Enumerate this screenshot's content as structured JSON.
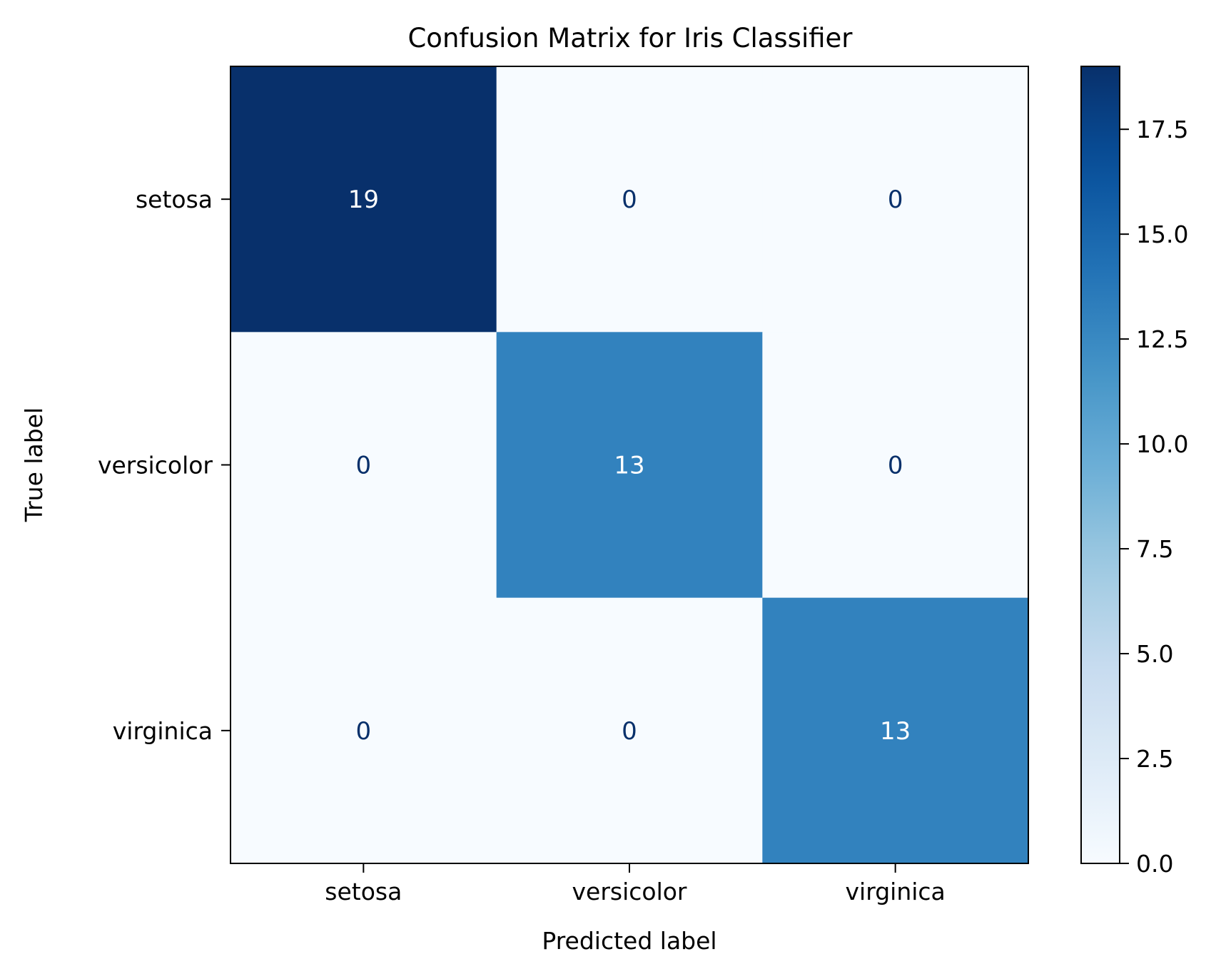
{
  "chart_data": {
    "type": "heatmap",
    "title": "Confusion Matrix for Iris Classifier",
    "xlabel": "Predicted label",
    "ylabel": "True label",
    "x_categories": [
      "setosa",
      "versicolor",
      "virginica"
    ],
    "y_categories": [
      "setosa",
      "versicolor",
      "virginica"
    ],
    "values": [
      [
        19,
        0,
        0
      ],
      [
        0,
        13,
        0
      ],
      [
        0,
        0,
        13
      ]
    ],
    "colormap": "Blues",
    "colorbar": {
      "range": [
        0,
        19
      ],
      "ticks": [
        0.0,
        2.5,
        5.0,
        7.5,
        10.0,
        12.5,
        15.0,
        17.5
      ],
      "tick_labels": [
        "0.0",
        "2.5",
        "5.0",
        "7.5",
        "10.0",
        "12.5",
        "15.0",
        "17.5"
      ]
    },
    "colors": {
      "min": "#f7fbff",
      "max": "#08306b",
      "text_dark_cell": "#ffffff",
      "text_light_cell": "#08306b",
      "axis": "#000000"
    }
  }
}
